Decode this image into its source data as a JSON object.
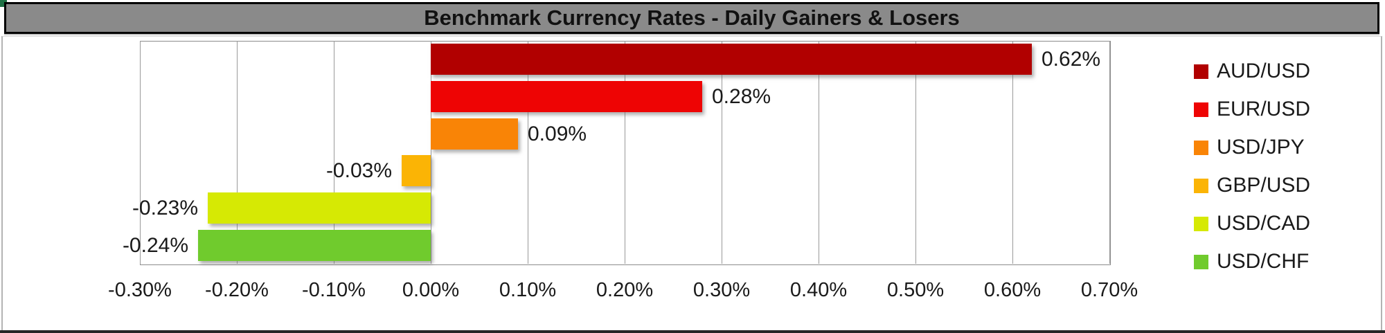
{
  "chart_data": {
    "type": "bar",
    "orientation": "horizontal",
    "title": "Benchmark Currency Rates - Daily Gainers & Losers",
    "categories": [
      "AUD/USD",
      "EUR/USD",
      "USD/JPY",
      "GBP/USD",
      "USD/CAD",
      "USD/CHF"
    ],
    "values": [
      0.62,
      0.28,
      0.09,
      -0.03,
      -0.23,
      -0.24
    ],
    "value_labels": [
      "0.62%",
      "0.28%",
      "0.09%",
      "-0.03%",
      "-0.23%",
      "-0.24%"
    ],
    "bar_colors": [
      "#B10000",
      "#EE0404",
      "#F98406",
      "#FBB405",
      "#D6E904",
      "#70CB2D"
    ],
    "xlim": [
      -0.3,
      0.7
    ],
    "x_ticks": [
      -0.3,
      -0.2,
      -0.1,
      0.0,
      0.1,
      0.2,
      0.3,
      0.4,
      0.5,
      0.6,
      0.7
    ],
    "x_tick_labels": [
      "-0.30%",
      "-0.20%",
      "-0.10%",
      "0.00%",
      "0.10%",
      "0.20%",
      "0.30%",
      "0.40%",
      "0.50%",
      "0.60%",
      "0.70%"
    ],
    "grid": true,
    "legend_position": "right",
    "legend": [
      {
        "label": "AUD/USD",
        "color": "#B10000"
      },
      {
        "label": "EUR/USD",
        "color": "#EE0404"
      },
      {
        "label": "USD/JPY",
        "color": "#F98406"
      },
      {
        "label": "GBP/USD",
        "color": "#FBB405"
      },
      {
        "label": "USD/CAD",
        "color": "#D6E904"
      },
      {
        "label": "USD/CHF",
        "color": "#70CB2D"
      }
    ]
  },
  "colors": {
    "title_bar_bg": "#8a8a8a",
    "title_bar_border": "#000000",
    "title_text": "#111111",
    "plot_bg": "#ffffff",
    "gridline": "#999999",
    "axis_text": "#1a1a1a",
    "corner_marker": "#1E7145"
  }
}
